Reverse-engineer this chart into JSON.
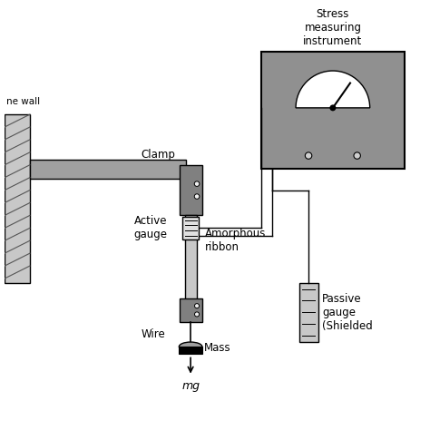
{
  "bg_color": "#ffffff",
  "gray_dark": "#808080",
  "gray_medium": "#a0a0a0",
  "gray_light": "#c8c8c8",
  "gray_instrument": "#909090",
  "circle_fill": "#f0f0f0",
  "black": "#000000",
  "wall_hatch_color": "#555555",
  "texts": {
    "wall_label": "ne wall",
    "clamp_label": "Clamp",
    "active_gauge_label": "Active\ngauge",
    "amorphous_label": "Amorphous\nribbon",
    "wire_label": "Wire",
    "mass_label": "Mass",
    "mg_label": "mg",
    "passive_gauge_label": "Passive\ngauge\n(Shielded",
    "instrument_label": "Stress\nmeasuring\ninstrument"
  }
}
